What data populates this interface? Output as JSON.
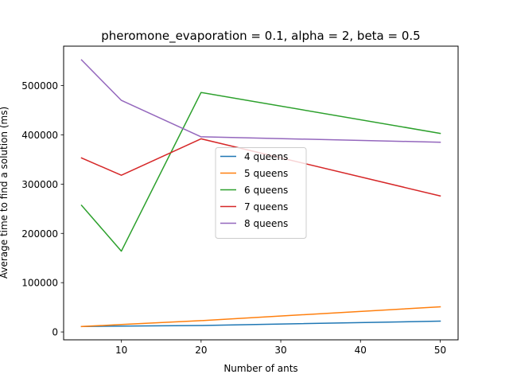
{
  "chart_data": {
    "type": "line",
    "title": "pheromone_evaporation = 0.1, alpha = 2, beta = 0.5",
    "xlabel": "Number of ants",
    "ylabel": "Average time to find a solution (ms)",
    "x": [
      5,
      10,
      20,
      50
    ],
    "xlim": [
      2.75,
      52.25
    ],
    "ylim": [
      -16000,
      580000
    ],
    "x_ticks": [
      10,
      20,
      30,
      40,
      50
    ],
    "y_ticks": [
      0,
      100000,
      200000,
      300000,
      400000,
      500000
    ],
    "grid": false,
    "legend_position": "center",
    "series": [
      {
        "name": "4 queens",
        "color": "#1f77b4",
        "values": [
          11000,
          12000,
          13000,
          22000
        ]
      },
      {
        "name": "5 queens",
        "color": "#ff7f0e",
        "values": [
          11000,
          15000,
          23000,
          51000
        ]
      },
      {
        "name": "6 queens",
        "color": "#2ca02c",
        "values": [
          257000,
          164000,
          486000,
          403000
        ]
      },
      {
        "name": "7 queens",
        "color": "#d62728",
        "values": [
          353000,
          318000,
          392000,
          276000
        ]
      },
      {
        "name": "8 queens",
        "color": "#9467bd",
        "values": [
          552000,
          470000,
          396000,
          385000
        ]
      }
    ]
  }
}
